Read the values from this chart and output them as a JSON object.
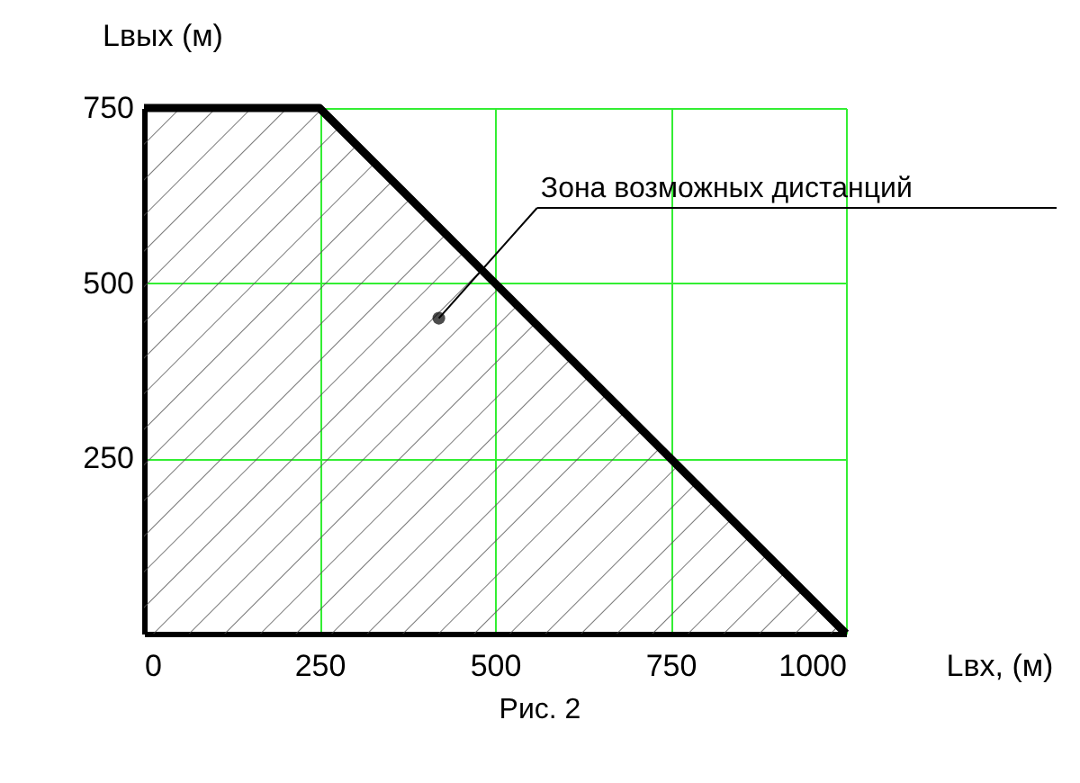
{
  "chart_data": {
    "type": "area",
    "xlabel": "Lвх, (м)",
    "ylabel": "Lвых (м)",
    "x": [
      0,
      250,
      1000
    ],
    "series": [
      {
        "color": "#000000",
        "values": [
          750,
          750,
          0
        ]
      }
    ],
    "xlim": [
      0,
      1000
    ],
    "ylim": [
      0,
      750
    ],
    "xticks": [
      0,
      250,
      500,
      750,
      1000
    ],
    "yticks": [
      250,
      500,
      750
    ],
    "grid": true,
    "annotations": [
      {
        "text": "Зона возможных дистанций",
        "x": 420,
        "y": 450
      },
      "Рис. 2"
    ]
  }
}
